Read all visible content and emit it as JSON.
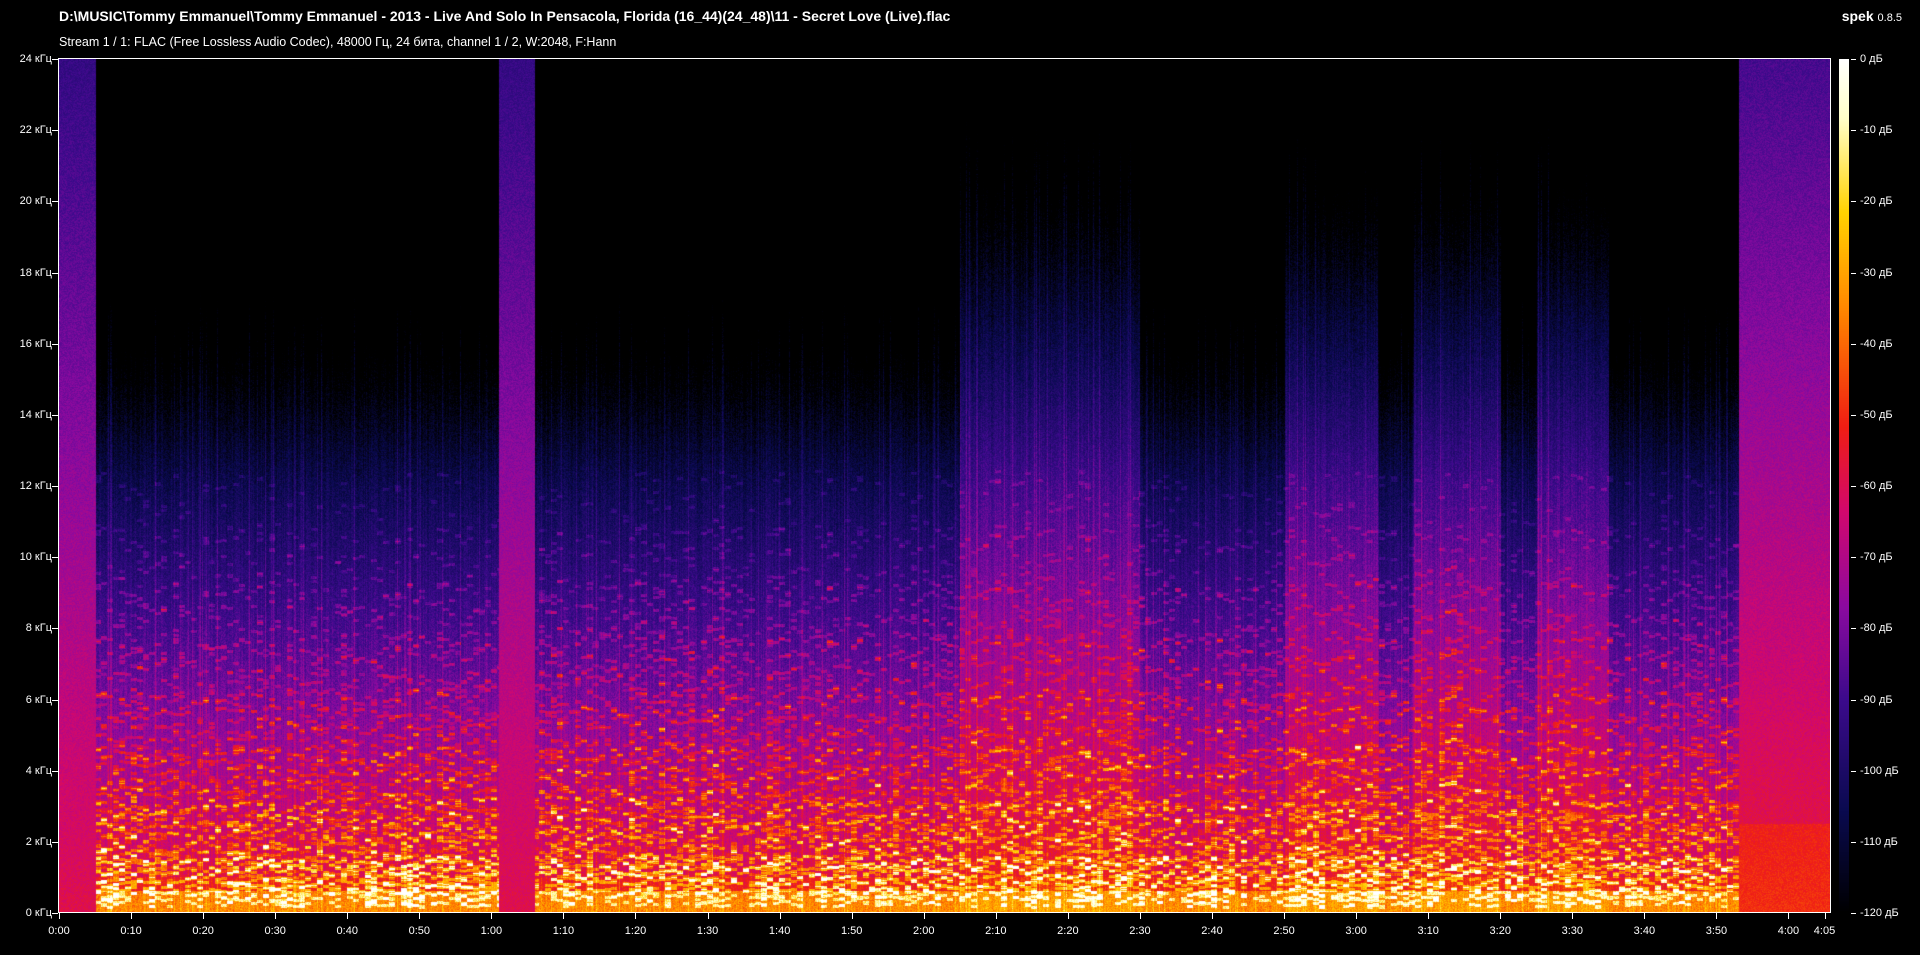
{
  "header": {
    "title": "D:\\MUSIC\\Tommy Emmanuel\\Tommy Emmanuel - 2013 - Live And Solo In Pensacola, Florida (16_44)(24_48)\\11 - Secret Love (Live).flac",
    "stream_info": "Stream 1 / 1: FLAC (Free Lossless Audio Codec), 48000 Гц, 24 бита, channel 1 / 2, W:2048, F:Hann",
    "app_name": "spek",
    "app_version": "0.8.5"
  },
  "chart_data": {
    "type": "heatmap",
    "x_axis": {
      "unit": "time",
      "range_seconds": [
        0,
        245.9
      ],
      "tick_labels": [
        "0:00",
        "0:10",
        "0:20",
        "0:30",
        "0:40",
        "0:50",
        "1:00",
        "1:10",
        "1:20",
        "1:30",
        "1:40",
        "1:50",
        "2:00",
        "2:10",
        "2:20",
        "2:30",
        "2:40",
        "2:50",
        "3:00",
        "3:10",
        "3:20",
        "3:30",
        "3:40",
        "3:50",
        "4:00",
        "4:05"
      ]
    },
    "y_axis": {
      "unit": "kHz",
      "range": [
        0,
        24
      ],
      "tick_labels": [
        "0 кГц",
        "2 кГц",
        "4 кГц",
        "6 кГц",
        "8 кГц",
        "10 кГц",
        "12 кГц",
        "14 кГц",
        "16 кГц",
        "18 кГц",
        "20 кГц",
        "22 кГц",
        "24 кГц"
      ]
    },
    "color_scale": {
      "unit": "dB",
      "range": [
        -120,
        0
      ],
      "tick_labels": [
        "0 дБ",
        "-10 дБ",
        "-20 дБ",
        "-30 дБ",
        "-40 дБ",
        "-50 дБ",
        "-60 дБ",
        "-70 дБ",
        "-80 дБ",
        "-90 дБ",
        "-100 дБ",
        "-110 дБ",
        "-120 дБ"
      ],
      "palette": [
        "#000000",
        "#0a0a50",
        "#3c0a8c",
        "#8c0aa0",
        "#d2086e",
        "#f01e14",
        "#ff8200",
        "#ffd200",
        "#ffffc8",
        "#ffffff"
      ]
    },
    "grid": false,
    "broadband_regions_seconds": [
      [
        0,
        5
      ],
      [
        61,
        66
      ],
      [
        233,
        245.9
      ]
    ]
  }
}
